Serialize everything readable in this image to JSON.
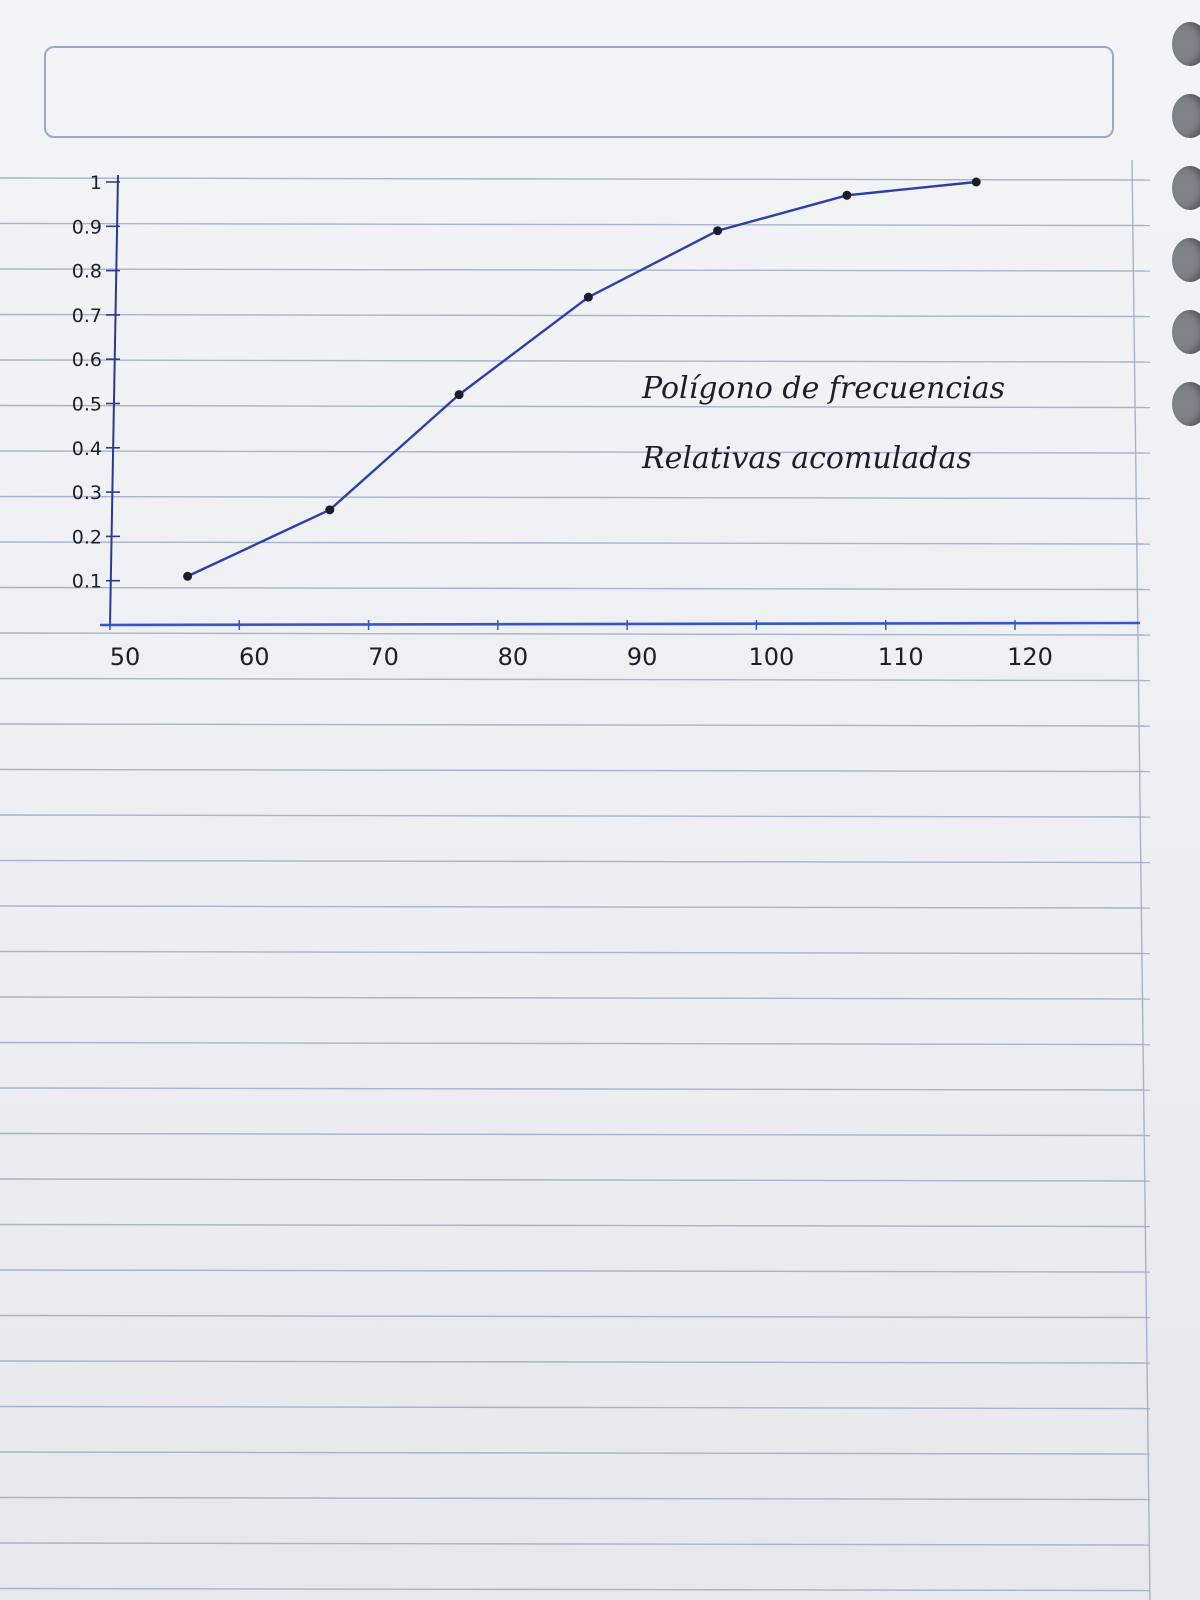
{
  "chart_data": {
    "type": "line",
    "title": "Polígono de frecuencias Relativas acomuladas",
    "xlim": [
      50,
      120
    ],
    "ylim": [
      0,
      1
    ],
    "x_ticks": [
      {
        "value": 50,
        "label": "50"
      },
      {
        "value": 60,
        "label": "60"
      },
      {
        "value": 70,
        "label": "70"
      },
      {
        "value": 80,
        "label": "80"
      },
      {
        "value": 90,
        "label": "90"
      },
      {
        "value": 100,
        "label": "100"
      },
      {
        "value": 110,
        "label": "110"
      },
      {
        "value": 120,
        "label": "120"
      }
    ],
    "y_ticks": [
      {
        "value": 0.1,
        "label": "0.1"
      },
      {
        "value": 0.2,
        "label": "0.2"
      },
      {
        "value": 0.3,
        "label": "0.3"
      },
      {
        "value": 0.4,
        "label": "0.4"
      },
      {
        "value": 0.5,
        "label": "0.5"
      },
      {
        "value": 0.6,
        "label": "0.6"
      },
      {
        "value": 0.7,
        "label": "0.7"
      },
      {
        "value": 0.8,
        "label": "0.8"
      },
      {
        "value": 0.9,
        "label": "0.9"
      },
      {
        "value": 1,
        "label": "1"
      }
    ],
    "series": [
      {
        "x": [
          56,
          67,
          77,
          87,
          97,
          107,
          117
        ],
        "y": [
          0.11,
          0.26,
          0.52,
          0.74,
          0.89,
          0.97,
          1.0
        ]
      }
    ],
    "grid": false,
    "colors": {
      "line": "#2b3fa8",
      "points": "#1b1d2b",
      "axis": "#3456c9",
      "text": "#1c1e2a"
    }
  }
}
